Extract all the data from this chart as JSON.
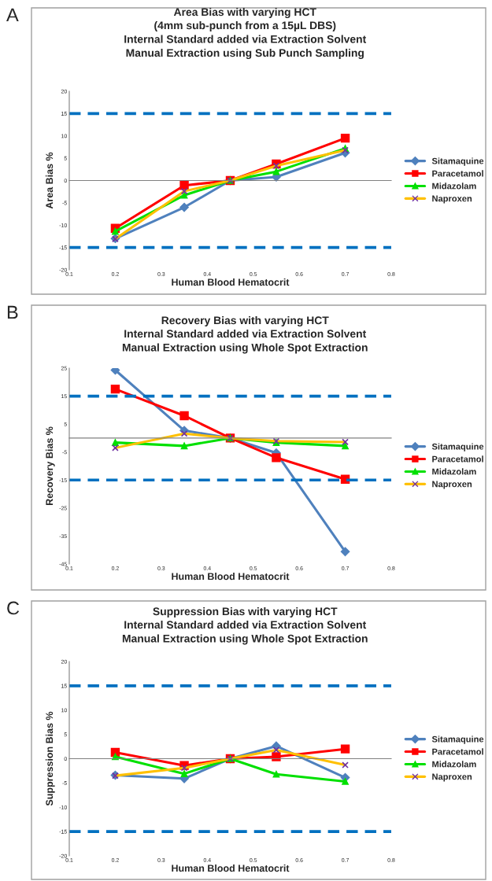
{
  "chart_data": [
    {
      "type": "line",
      "title": "Area Bias with varying HCT",
      "subtitle": "(4mm sub-punch from a 15µL DBS)\nInternal Standard added via Extraction Solvent\nManual Extraction using Sub Punch Sampling",
      "xlabel": "Human Blood Hematocrit",
      "ylabel": "Area Bias %",
      "annotations": [
        "A"
      ],
      "x": [
        0.2,
        0.35,
        0.45,
        0.55,
        0.7
      ],
      "series": [
        {
          "name": "Sitamaquine",
          "color": "#4f81bd",
          "marker": "diamond",
          "values": [
            -13,
            -6,
            0,
            0.8,
            6.2
          ]
        },
        {
          "name": "Paracetamol",
          "color": "#ff0000",
          "marker": "square",
          "values": [
            -10.7,
            -1.1,
            0,
            3.7,
            9.5
          ]
        },
        {
          "name": "Midazolam",
          "color": "#00e000",
          "marker": "triangle",
          "values": [
            -11.4,
            -3.3,
            0,
            2,
            7.2
          ]
        },
        {
          "name": "Naproxen",
          "color": "#ffc000",
          "marker": "cross",
          "values": [
            -13.1,
            -2.4,
            0,
            3.3,
            6.8
          ]
        }
      ],
      "xlim": [
        0.1,
        0.8
      ],
      "xticks": [
        0.1,
        0.2,
        0.3,
        0.4,
        0.5,
        0.6,
        0.7,
        0.8
      ],
      "ylim": [
        -20,
        20
      ],
      "yticks": [
        -20,
        -15,
        -10,
        -5,
        0,
        5,
        10,
        15,
        20
      ],
      "ref_lines": [
        {
          "axis": "y",
          "value": 15,
          "color": "#0070c0",
          "line_style": "dashed"
        },
        {
          "axis": "y",
          "value": -15,
          "color": "#0070c0",
          "line_style": "dashed"
        }
      ],
      "legend": "right",
      "grid": false,
      "line_style": "solid"
    },
    {
      "type": "line",
      "title": "Recovery Bias with varying HCT",
      "subtitle": "Internal Standard added via Extraction Solvent\nManual Extraction using Whole Spot Extraction",
      "xlabel": "Human Blood Hematocrit",
      "ylabel": "Recovery Bias %",
      "annotations": [
        "B"
      ],
      "x": [
        0.2,
        0.35,
        0.45,
        0.55,
        0.7
      ],
      "series": [
        {
          "name": "Sitamaquine",
          "color": "#4f81bd",
          "marker": "diamond",
          "values": [
            24.3,
            2.7,
            0,
            -5.3,
            -40.6
          ]
        },
        {
          "name": "Paracetamol",
          "color": "#ff0000",
          "marker": "square",
          "values": [
            17.5,
            8,
            0,
            -7,
            -14.7
          ]
        },
        {
          "name": "Midazolam",
          "color": "#00e000",
          "marker": "triangle",
          "values": [
            -1.6,
            -2.8,
            0,
            -1.6,
            -2.8
          ]
        },
        {
          "name": "Naproxen",
          "color": "#ffc000",
          "marker": "cross",
          "values": [
            -3.5,
            1.6,
            0,
            -1.1,
            -1.4
          ]
        }
      ],
      "xlim": [
        0.1,
        0.8
      ],
      "xticks": [
        0.1,
        0.2,
        0.3,
        0.4,
        0.5,
        0.6,
        0.7,
        0.8
      ],
      "ylim": [
        -45,
        25
      ],
      "yticks": [
        -45,
        -35,
        -25,
        -15,
        -5,
        5,
        15,
        25
      ],
      "ref_lines": [
        {
          "axis": "y",
          "value": 15,
          "color": "#0070c0",
          "line_style": "dashed"
        },
        {
          "axis": "y",
          "value": -15,
          "color": "#0070c0",
          "line_style": "dashed"
        }
      ],
      "legend": "right",
      "grid": false,
      "line_style": "solid"
    },
    {
      "type": "line",
      "title": "Suppression Bias with varying HCT",
      "subtitle": "Internal Standard added via Extraction Solvent\nManual Extraction using Whole Spot Extraction",
      "xlabel": "Human Blood Hematocrit",
      "ylabel": "Suppression Bias %",
      "annotations": [
        "C"
      ],
      "x": [
        0.2,
        0.35,
        0.45,
        0.55,
        0.7
      ],
      "series": [
        {
          "name": "Sitamaquine",
          "color": "#4f81bd",
          "marker": "diamond",
          "values": [
            -3.4,
            -4.1,
            0,
            2.6,
            -3.9
          ]
        },
        {
          "name": "Paracetamol",
          "color": "#ff0000",
          "marker": "square",
          "values": [
            1.3,
            -1.4,
            0,
            0.4,
            2
          ]
        },
        {
          "name": "Midazolam",
          "color": "#00e000",
          "marker": "triangle",
          "values": [
            0.4,
            -3.1,
            0,
            -3.2,
            -4.7
          ]
        },
        {
          "name": "Naproxen",
          "color": "#ffc000",
          "marker": "cross",
          "values": [
            -3.5,
            -1.9,
            0,
            1.8,
            -1.3
          ]
        }
      ],
      "xlim": [
        0.1,
        0.8
      ],
      "xticks": [
        0.1,
        0.2,
        0.3,
        0.4,
        0.5,
        0.6,
        0.7,
        0.8
      ],
      "ylim": [
        -20,
        20
      ],
      "yticks": [
        -20,
        -15,
        -10,
        -5,
        0,
        5,
        10,
        15,
        20
      ],
      "ref_lines": [
        {
          "axis": "y",
          "value": 15,
          "color": "#0070c0",
          "line_style": "dashed"
        },
        {
          "axis": "y",
          "value": -15,
          "color": "#0070c0",
          "line_style": "dashed"
        }
      ],
      "legend": "right",
      "grid": false,
      "line_style": "solid"
    }
  ]
}
